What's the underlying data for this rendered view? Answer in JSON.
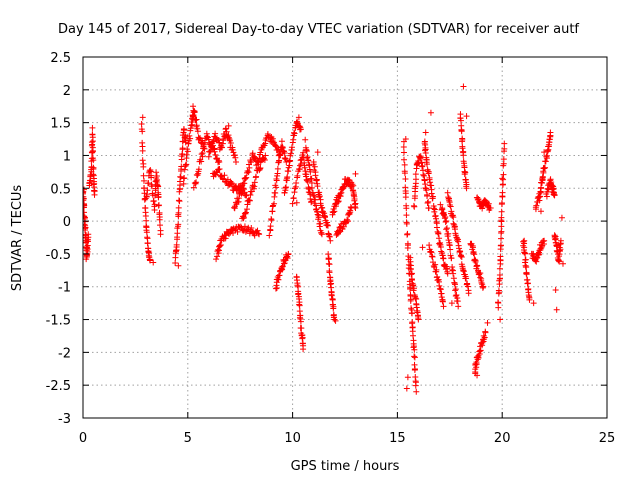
{
  "chart_data": {
    "type": "scatter",
    "title": "Day 145 of 2017, Sidereal Day-to-day VTEC variation (SDTVAR) for receiver autf",
    "xlabel": "GPS time / hours",
    "ylabel": "SDTVAR / TECUs",
    "xlim": [
      0,
      25
    ],
    "ylim": [
      -3,
      2.5
    ],
    "xticks": [
      0,
      5,
      10,
      15,
      20,
      25
    ],
    "yticks": [
      -3,
      -2.5,
      -2,
      -1.5,
      -1,
      -0.5,
      0,
      0.5,
      1,
      1.5,
      2,
      2.5
    ],
    "grid": true,
    "marker": "+",
    "color": "#ff0000",
    "series": [
      {
        "name": "SDTVAR",
        "traces": [
          [
            [
              0.0,
              0.45
            ],
            [
              0.05,
              0.2
            ],
            [
              0.1,
              -0.1
            ],
            [
              0.15,
              -0.3
            ],
            [
              0.2,
              -0.55
            ],
            [
              0.25,
              -0.2
            ]
          ],
          [
            [
              0.3,
              0.55
            ],
            [
              0.4,
              0.8
            ],
            [
              0.45,
              1.35
            ],
            [
              0.5,
              0.7
            ],
            [
              0.55,
              0.4
            ]
          ],
          [
            [
              2.8,
              1.5
            ],
            [
              2.9,
              0.6
            ],
            [
              3.0,
              0.0
            ],
            [
              3.1,
              -0.4
            ],
            [
              3.2,
              -0.6
            ]
          ],
          [
            [
              3.0,
              0.3
            ],
            [
              3.2,
              0.8
            ],
            [
              3.4,
              0.2
            ],
            [
              3.5,
              0.7
            ],
            [
              3.6,
              0.4
            ],
            [
              3.7,
              -0.2
            ]
          ],
          [
            [
              4.4,
              -0.6
            ],
            [
              4.5,
              -0.2
            ],
            [
              4.6,
              0.4
            ],
            [
              4.7,
              0.9
            ],
            [
              4.8,
              1.4
            ],
            [
              4.9,
              1.2
            ]
          ],
          [
            [
              4.8,
              0.6
            ],
            [
              5.0,
              1.1
            ],
            [
              5.2,
              1.5
            ],
            [
              5.3,
              1.7
            ],
            [
              5.5,
              1.3
            ],
            [
              5.8,
              1.1
            ]
          ],
          [
            [
              5.3,
              0.5
            ],
            [
              5.6,
              0.9
            ],
            [
              5.9,
              1.3
            ],
            [
              6.2,
              1.1
            ],
            [
              6.5,
              0.9
            ]
          ],
          [
            [
              6.0,
              1.0
            ],
            [
              6.3,
              1.3
            ],
            [
              6.6,
              1.1
            ],
            [
              6.8,
              1.4
            ],
            [
              7.0,
              1.2
            ],
            [
              7.3,
              0.9
            ]
          ],
          [
            [
              6.2,
              0.7
            ],
            [
              6.5,
              0.75
            ],
            [
              6.9,
              0.6
            ],
            [
              7.2,
              0.5
            ],
            [
              7.5,
              0.5
            ],
            [
              7.8,
              0.4
            ]
          ],
          [
            [
              6.4,
              -0.5
            ],
            [
              6.6,
              -0.3
            ],
            [
              6.9,
              -0.2
            ],
            [
              7.2,
              -0.15
            ],
            [
              7.6,
              -0.1
            ],
            [
              8.0,
              -0.15
            ],
            [
              8.4,
              -0.2
            ]
          ],
          [
            [
              7.2,
              0.2
            ],
            [
              7.5,
              0.4
            ],
            [
              7.8,
              0.7
            ],
            [
              8.1,
              1.0
            ],
            [
              8.4,
              0.8
            ],
            [
              8.7,
              1.0
            ]
          ],
          [
            [
              7.6,
              0.0
            ],
            [
              7.9,
              0.3
            ],
            [
              8.2,
              0.6
            ],
            [
              8.5,
              1.1
            ],
            [
              8.8,
              1.3
            ],
            [
              9.1,
              1.2
            ],
            [
              9.4,
              1.0
            ]
          ],
          [
            [
              8.9,
              -0.2
            ],
            [
              9.1,
              0.3
            ],
            [
              9.3,
              0.8
            ],
            [
              9.5,
              1.2
            ],
            [
              9.7,
              0.9
            ]
          ],
          [
            [
              9.2,
              -1.0
            ],
            [
              9.4,
              -0.8
            ],
            [
              9.6,
              -0.6
            ],
            [
              9.8,
              -0.5
            ]
          ],
          [
            [
              9.6,
              0.4
            ],
            [
              9.8,
              0.8
            ],
            [
              10.0,
              1.2
            ],
            [
              10.2,
              1.5
            ],
            [
              10.4,
              1.4
            ]
          ],
          [
            [
              10.0,
              0.3
            ],
            [
              10.3,
              0.8
            ],
            [
              10.5,
              1.0
            ],
            [
              10.7,
              0.6
            ],
            [
              10.9,
              0.3
            ]
          ],
          [
            [
              10.2,
              -0.8
            ],
            [
              10.3,
              -1.2
            ],
            [
              10.4,
              -1.6
            ],
            [
              10.5,
              -1.9
            ]
          ],
          [
            [
              10.6,
              1.2
            ],
            [
              10.8,
              0.8
            ],
            [
              11.0,
              0.4
            ],
            [
              11.2,
              0.1
            ],
            [
              11.4,
              -0.2
            ]
          ],
          [
            [
              11.0,
              0.9
            ],
            [
              11.2,
              0.5
            ],
            [
              11.4,
              0.2
            ],
            [
              11.6,
              0.0
            ],
            [
              11.8,
              -0.3
            ]
          ],
          [
            [
              11.7,
              -0.5
            ],
            [
              11.8,
              -0.9
            ],
            [
              11.9,
              -1.2
            ],
            [
              12.0,
              -1.5
            ]
          ],
          [
            [
              11.9,
              0.1
            ],
            [
              12.1,
              0.3
            ],
            [
              12.3,
              0.4
            ],
            [
              12.5,
              0.6
            ],
            [
              12.7,
              0.6
            ],
            [
              12.9,
              0.5
            ],
            [
              13.0,
              0.2
            ]
          ],
          [
            [
              12.1,
              -0.2
            ],
            [
              12.3,
              -0.1
            ],
            [
              12.6,
              0.0
            ],
            [
              12.8,
              0.2
            ]
          ],
          [
            [
              15.3,
              1.2
            ],
            [
              15.4,
              0.4
            ],
            [
              15.5,
              -0.4
            ],
            [
              15.6,
              -1.0
            ],
            [
              15.7,
              -1.5
            ],
            [
              15.8,
              -2.0
            ],
            [
              15.9,
              -2.6
            ]
          ],
          [
            [
              15.6,
              -0.6
            ],
            [
              15.7,
              -0.9
            ],
            [
              15.9,
              -1.2
            ],
            [
              16.0,
              -1.5
            ]
          ],
          [
            [
              15.8,
              0.2
            ],
            [
              15.9,
              0.8
            ],
            [
              16.1,
              1.0
            ],
            [
              16.3,
              0.6
            ],
            [
              16.5,
              0.2
            ]
          ],
          [
            [
              16.3,
              1.2
            ],
            [
              16.4,
              0.9
            ],
            [
              16.6,
              0.5
            ],
            [
              16.8,
              0.1
            ],
            [
              17.0,
              -0.3
            ],
            [
              17.2,
              -0.6
            ],
            [
              17.4,
              -0.8
            ]
          ],
          [
            [
              16.5,
              -0.4
            ],
            [
              16.8,
              -0.7
            ],
            [
              17.0,
              -1.0
            ],
            [
              17.2,
              -1.3
            ]
          ],
          [
            [
              17.1,
              0.2
            ],
            [
              17.3,
              0.0
            ],
            [
              17.5,
              -0.4
            ],
            [
              17.7,
              -0.9
            ],
            [
              17.9,
              -1.3
            ]
          ],
          [
            [
              17.4,
              0.4
            ],
            [
              17.6,
              0.1
            ],
            [
              17.8,
              -0.2
            ],
            [
              18.0,
              -0.5
            ],
            [
              18.2,
              -0.8
            ],
            [
              18.4,
              -1.1
            ]
          ],
          [
            [
              18.0,
              1.6
            ],
            [
              18.1,
              1.2
            ],
            [
              18.2,
              0.8
            ],
            [
              18.3,
              0.5
            ]
          ],
          [
            [
              18.5,
              -0.3
            ],
            [
              18.7,
              -0.6
            ],
            [
              18.9,
              -0.8
            ],
            [
              19.1,
              -1.0
            ]
          ],
          [
            [
              18.7,
              -2.3
            ],
            [
              18.8,
              -2.1
            ],
            [
              19.0,
              -1.9
            ],
            [
              19.2,
              -1.7
            ]
          ],
          [
            [
              18.8,
              0.4
            ],
            [
              19.0,
              0.2
            ],
            [
              19.2,
              0.3
            ],
            [
              19.4,
              0.2
            ]
          ],
          [
            [
              19.8,
              -1.3
            ],
            [
              19.9,
              -0.8
            ],
            [
              19.95,
              -0.2
            ],
            [
              20.0,
              0.4
            ],
            [
              20.1,
              1.1
            ]
          ],
          [
            [
              21.0,
              -0.3
            ],
            [
              21.1,
              -0.6
            ],
            [
              21.2,
              -0.9
            ],
            [
              21.3,
              -1.2
            ]
          ],
          [
            [
              21.4,
              -0.5
            ],
            [
              21.6,
              -0.6
            ],
            [
              21.8,
              -0.4
            ],
            [
              22.0,
              -0.3
            ]
          ],
          [
            [
              21.6,
              0.2
            ],
            [
              21.8,
              0.4
            ],
            [
              21.9,
              0.6
            ],
            [
              22.0,
              0.8
            ],
            [
              22.2,
              1.1
            ],
            [
              22.3,
              1.3
            ]
          ],
          [
            [
              22.1,
              0.4
            ],
            [
              22.3,
              0.6
            ],
            [
              22.4,
              0.5
            ],
            [
              22.5,
              0.4
            ]
          ],
          [
            [
              22.5,
              -0.2
            ],
            [
              22.6,
              -0.4
            ],
            [
              22.7,
              -0.6
            ],
            [
              22.8,
              -0.3
            ]
          ]
        ],
        "points": [
          [
            0.05,
            0.48
          ],
          [
            0.15,
            -0.58
          ],
          [
            0.45,
            1.42
          ],
          [
            2.85,
            1.58
          ],
          [
            3.35,
            -0.63
          ],
          [
            4.55,
            -0.68
          ],
          [
            5.25,
            1.75
          ],
          [
            6.95,
            1.45
          ],
          [
            6.35,
            -0.58
          ],
          [
            9.25,
            -1.02
          ],
          [
            10.3,
            1.58
          ],
          [
            10.5,
            -1.95
          ],
          [
            10.2,
            0.28
          ],
          [
            11.2,
            1.05
          ],
          [
            12.05,
            -1.52
          ],
          [
            13.0,
            0.72
          ],
          [
            15.4,
            1.25
          ],
          [
            15.45,
            -2.55
          ],
          [
            15.5,
            -2.38
          ],
          [
            16.35,
            1.35
          ],
          [
            16.6,
            1.65
          ],
          [
            16.2,
            -0.4
          ],
          [
            17.05,
            0.25
          ],
          [
            17.6,
            -1.25
          ],
          [
            18.15,
            2.05
          ],
          [
            18.3,
            1.6
          ],
          [
            18.8,
            -2.35
          ],
          [
            19.3,
            -1.55
          ],
          [
            19.45,
            0.2
          ],
          [
            20.1,
            1.18
          ],
          [
            20.0,
            0.65
          ],
          [
            19.9,
            -1.5
          ],
          [
            21.05,
            -0.3
          ],
          [
            21.5,
            -1.25
          ],
          [
            21.85,
            0.15
          ],
          [
            22.0,
            1.05
          ],
          [
            22.3,
            1.35
          ],
          [
            22.55,
            -1.05
          ],
          [
            22.6,
            -1.35
          ],
          [
            22.9,
            -0.65
          ],
          [
            22.85,
            0.05
          ]
        ]
      }
    ]
  }
}
